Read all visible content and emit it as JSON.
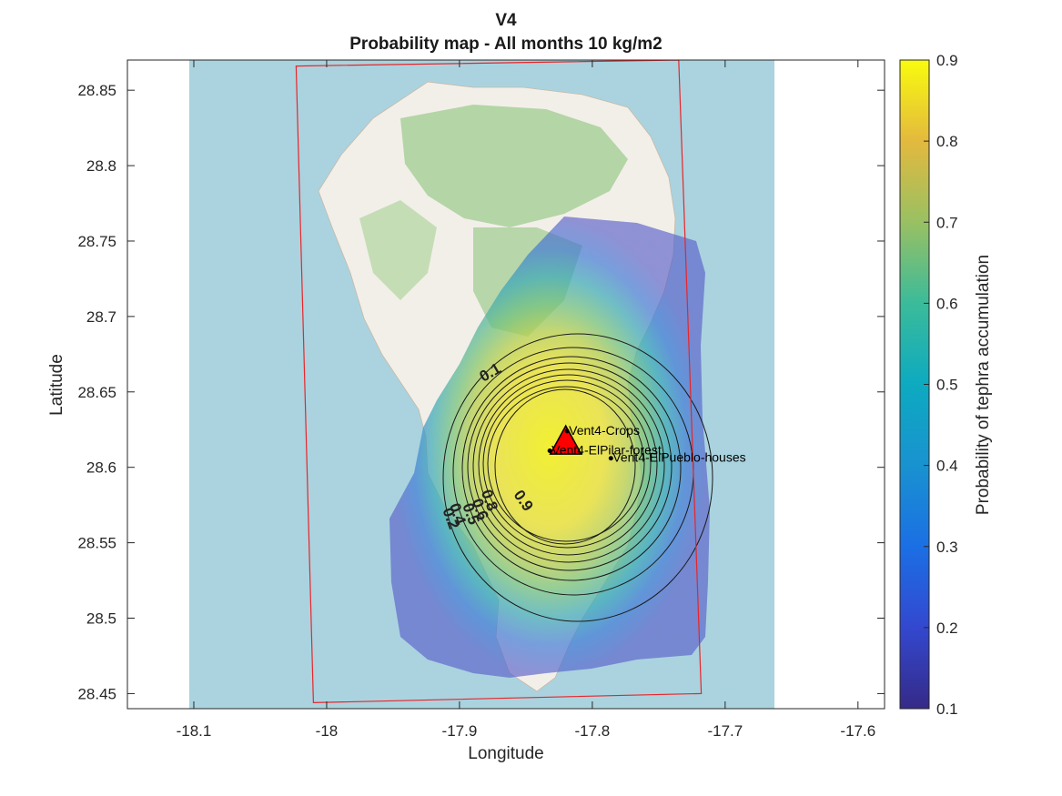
{
  "title": {
    "line1": "V4",
    "line2": "Probability map - All months 10 kg/m2"
  },
  "axes": {
    "xlabel": "Longitude",
    "ylabel": "Latitude",
    "xlim": [
      -18.15,
      -17.58
    ],
    "ylim": [
      28.44,
      28.87
    ],
    "xticks": [
      -18.1,
      -18.0,
      -17.9,
      -17.8,
      -17.7,
      -17.6
    ],
    "xtick_labels": [
      "-18.1",
      "-18",
      "-17.9",
      "-17.8",
      "-17.7",
      "-17.6"
    ],
    "yticks": [
      28.45,
      28.5,
      28.55,
      28.6,
      28.65,
      28.7,
      28.75,
      28.8,
      28.85
    ],
    "ytick_labels": [
      "28.45",
      "28.5",
      "28.55",
      "28.6",
      "28.65",
      "28.7",
      "28.75",
      "28.8",
      "28.85"
    ]
  },
  "colorbar": {
    "label": "Probability of tephra accumulation",
    "range": [
      0.1,
      0.9
    ],
    "ticks": [
      0.1,
      0.2,
      0.3,
      0.4,
      0.5,
      0.6,
      0.7,
      0.8,
      0.9
    ],
    "tick_labels": [
      "0.1",
      "0.2",
      "0.3",
      "0.4",
      "0.5",
      "0.6",
      "0.7",
      "0.8",
      "0.9"
    ],
    "colormap": "parula"
  },
  "chart_data": {
    "type": "heatmap",
    "title": "V4 Probability map - All months 10 kg/m2",
    "xlabel": "Longitude",
    "ylabel": "Latitude",
    "xlim": [
      -18.15,
      -17.58
    ],
    "ylim": [
      28.44,
      28.87
    ],
    "vent": {
      "name": "Vent4",
      "lon": -17.82,
      "lat": 28.61
    },
    "contour_levels": [
      0.1,
      0.2,
      0.3,
      0.4,
      0.5,
      0.6,
      0.7,
      0.8,
      0.9
    ],
    "contour_label_texts": [
      {
        "text": "0.1",
        "lon": -17.875,
        "lat": 28.66
      },
      {
        "text": "0.2",
        "lon": -17.91,
        "lat": 28.565
      },
      {
        "text": "0.4",
        "lon": -17.905,
        "lat": 28.568
      },
      {
        "text": "0.5",
        "lon": -17.895,
        "lat": 28.568
      },
      {
        "text": "0.6",
        "lon": -17.888,
        "lat": 28.571
      },
      {
        "text": "0.8",
        "lon": -17.881,
        "lat": 28.577
      },
      {
        "text": "0.9",
        "lon": -17.855,
        "lat": 28.576
      }
    ],
    "locations": [
      {
        "name": "Vent4-Crops",
        "lon": -17.819,
        "lat": 28.624
      },
      {
        "name": "Vent4-ElPilar-forest",
        "lon": -17.832,
        "lat": 28.611
      },
      {
        "name": "Vent4-ElPueblo-houses",
        "lon": -17.786,
        "lat": 28.606
      }
    ],
    "domain_box": [
      {
        "lon": -18.023,
        "lat": 28.866
      },
      {
        "lon": -17.735,
        "lat": 28.87
      },
      {
        "lon": -17.718,
        "lat": 28.45
      },
      {
        "lon": -18.01,
        "lat": 28.444
      }
    ]
  },
  "colors": {
    "sea": "#aad3df",
    "land": "#f2efe9",
    "forest": "#add19e",
    "box": "#e8252a",
    "vent": "#ff0000"
  }
}
